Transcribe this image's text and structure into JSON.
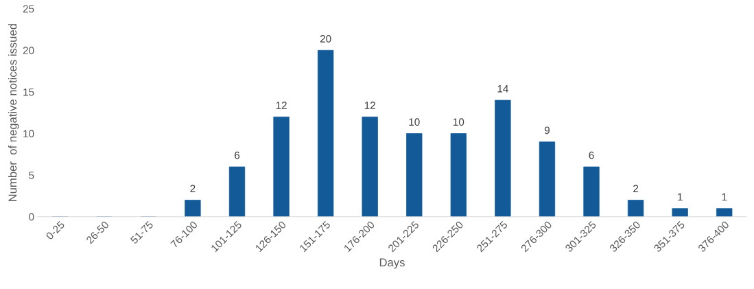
{
  "chart_data": {
    "type": "bar",
    "xlabel": "Days",
    "ylabel": "Number  of negative notices issued",
    "categories": [
      "0-25",
      "26-50",
      "51-75",
      "76-100",
      "101-125",
      "126-150",
      "151-175",
      "176-200",
      "201-225",
      "226-250",
      "251-275",
      "276-300",
      "301-325",
      "326-350",
      "351-375",
      "376-400"
    ],
    "values": [
      0,
      0,
      0,
      2,
      6,
      12,
      20,
      12,
      10,
      10,
      14,
      9,
      6,
      2,
      1,
      1
    ],
    "value_labels": [
      null,
      null,
      null,
      "2",
      "6",
      "12",
      "20",
      "12",
      "10",
      "10",
      "14",
      "9",
      "6",
      "2",
      "1",
      "1"
    ],
    "color": "#125a98",
    "ylim": [
      0,
      25
    ],
    "yticks": [
      0,
      5,
      10,
      15,
      20,
      25
    ],
    "grid": false,
    "legend": false
  }
}
